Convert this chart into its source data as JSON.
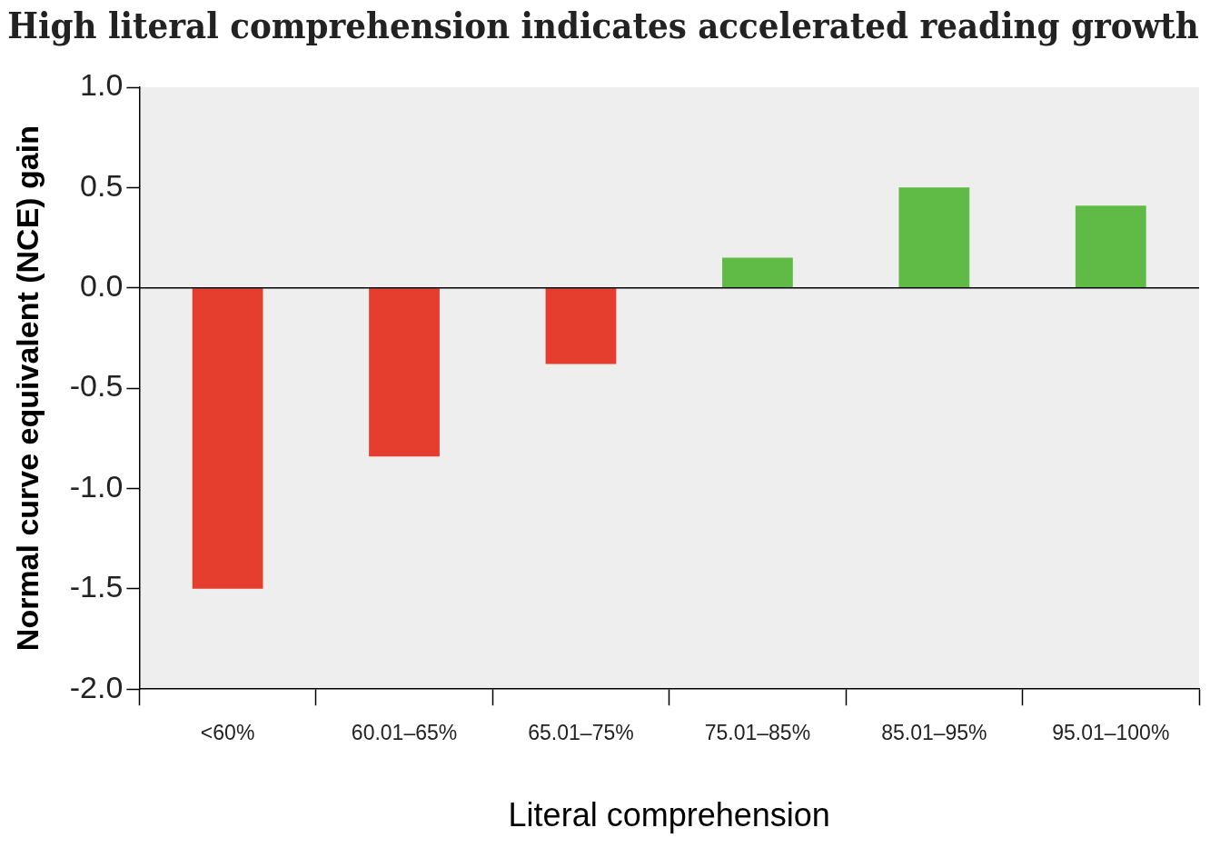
{
  "chart_data": {
    "type": "bar",
    "title": "High literal comprehension indicates accelerated reading growth",
    "xlabel": "Literal comprehension",
    "ylabel": "Normal curve equivalent (NCE) gain",
    "categories": [
      "<60%",
      "60.01–65%",
      "65.01–75%",
      "75.01–85%",
      "85.01–95%",
      "95.01–100%"
    ],
    "values": [
      -1.5,
      -0.84,
      -0.38,
      0.15,
      0.5,
      0.41
    ],
    "colors": [
      "#e63e2e",
      "#e63e2e",
      "#e63e2e",
      "#5fba46",
      "#5fba46",
      "#5fba46"
    ],
    "ylim": [
      -2,
      1
    ],
    "yticks": [
      {
        "value": -2,
        "label": "-2.0"
      },
      {
        "value": -1.5,
        "label": "-1.5"
      },
      {
        "value": -1,
        "label": "-1.0"
      },
      {
        "value": -0.5,
        "label": "-0.5"
      },
      {
        "value": 0,
        "label": "0.0"
      },
      {
        "value": 0.5,
        "label": "0.5"
      },
      {
        "value": 1,
        "label": "1.0"
      }
    ],
    "ref_lines": [
      {
        "axis": "y",
        "value": 0,
        "color": "#000000"
      }
    ],
    "grid": false,
    "legend": false
  }
}
